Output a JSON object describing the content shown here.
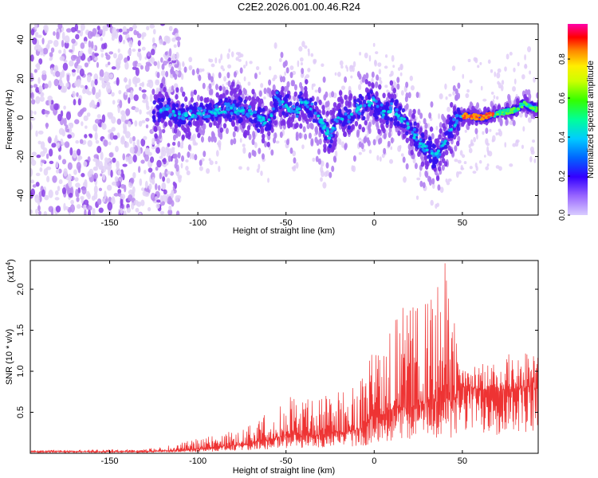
{
  "title": "C2E2.2026.001.00.46.R24",
  "charts": {
    "spectrogram": {
      "type": "heatmap",
      "xlabel": "Height of straight line (km)",
      "ylabel": "Frequency (Hz)",
      "xlim": [
        -195,
        93
      ],
      "ylim": [
        -50,
        48
      ],
      "xticks": [
        -150,
        -100,
        -50,
        0,
        50
      ],
      "yticks": [
        40,
        20,
        0,
        -20,
        -40
      ],
      "xtick_labels": [
        "-150",
        "-100",
        "-50",
        "0",
        "50"
      ],
      "ytick_labels": [
        "40",
        "20",
        "0",
        "-20",
        "-40"
      ],
      "ridge": {
        "x": [
          -125,
          -120,
          -110,
          -100,
          -90,
          -80,
          -70,
          -60,
          -55,
          -50,
          -45,
          -40,
          -35,
          -30,
          -25,
          -20,
          -15,
          -10,
          -5,
          0,
          5,
          10,
          15,
          20,
          25,
          30,
          35,
          40,
          45,
          48,
          52,
          60,
          70,
          80,
          85,
          93
        ],
        "y": [
          3,
          4,
          1,
          2,
          3,
          5,
          2,
          -3,
          10,
          6,
          2,
          8,
          4,
          -2,
          -10,
          1,
          -1,
          4,
          6,
          8,
          3,
          5,
          0,
          -5,
          -12,
          -16,
          -20,
          -13,
          -3,
          0,
          1,
          0,
          2,
          4,
          7,
          4
        ]
      },
      "colorbar": {
        "label": "Normalized spectral amplitude",
        "ticks": [
          "0.0",
          "0.2",
          "0.4",
          "0.6",
          "0.8"
        ],
        "tick_values": [
          0,
          0.2,
          0.4,
          0.6,
          0.8
        ],
        "range": [
          0,
          0.98
        ]
      }
    },
    "snr": {
      "type": "line",
      "xlabel": "Height of straight line (km)",
      "ylabel": "SNR (10 * v/v)",
      "multiplier": "(x10",
      "multiplier_exp": "4",
      "multiplier_close": ")",
      "xlim": [
        -195,
        93
      ],
      "ylim": [
        0,
        2.35
      ],
      "xticks": [
        -150,
        -100,
        -50,
        0,
        50
      ],
      "yticks": [
        0.5,
        1.0,
        1.5,
        2.0
      ],
      "xtick_labels": [
        "-150",
        "-100",
        "-50",
        "0",
        "50"
      ],
      "ytick_labels": [
        "0.5",
        "1.0",
        "1.5",
        "2.0"
      ],
      "series_color": "#ee3333",
      "envelope": {
        "x": [
          -195,
          -130,
          -115,
          -100,
          -85,
          -70,
          -55,
          -45,
          -35,
          -25,
          -15,
          -5,
          0,
          10,
          20,
          30,
          40,
          45,
          50,
          55,
          70,
          85,
          93
        ],
        "baseline": [
          0.02,
          0.02,
          0.03,
          0.05,
          0.08,
          0.12,
          0.18,
          0.22,
          0.2,
          0.25,
          0.25,
          0.3,
          0.45,
          0.5,
          0.55,
          0.6,
          0.65,
          0.6,
          0.8,
          0.8,
          0.75,
          0.8,
          0.8
        ],
        "peak": [
          0.04,
          0.05,
          0.1,
          0.18,
          0.25,
          0.35,
          0.6,
          0.8,
          0.65,
          0.75,
          0.8,
          1.0,
          1.35,
          1.75,
          1.8,
          1.85,
          2.35,
          1.9,
          1.05,
          1.05,
          1.15,
          1.3,
          1.2
        ]
      }
    }
  }
}
